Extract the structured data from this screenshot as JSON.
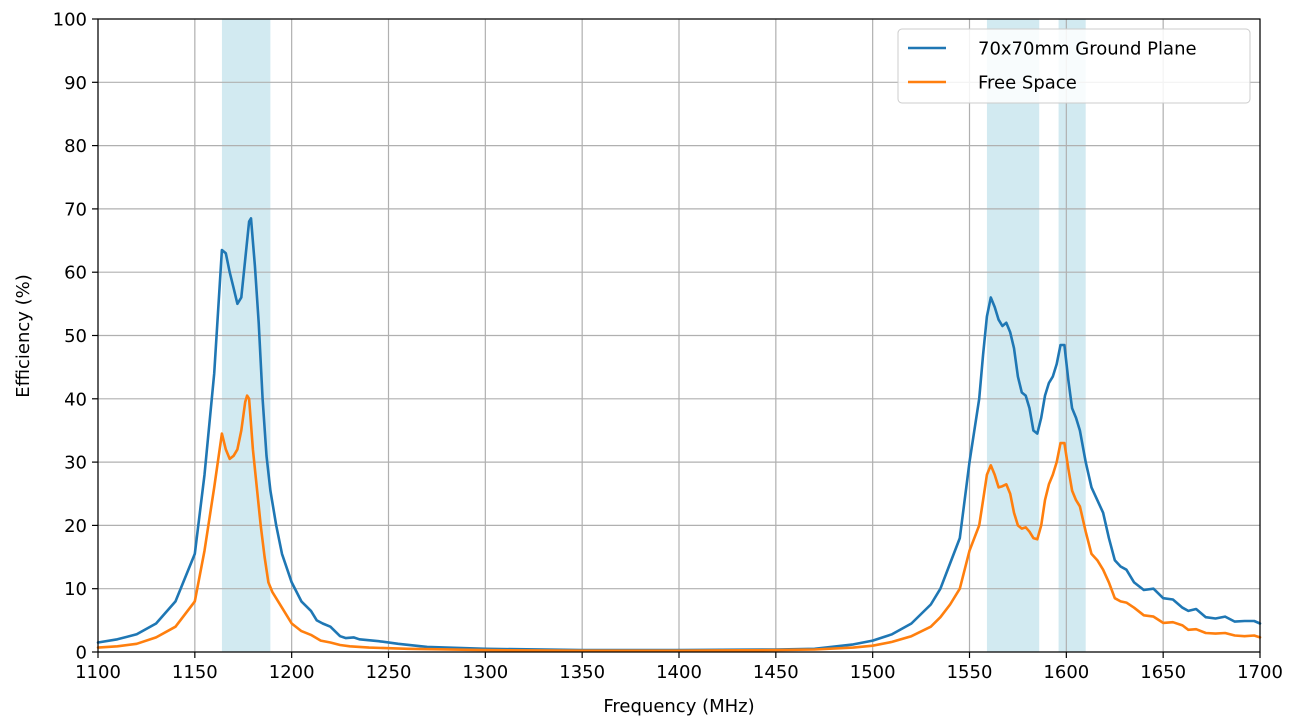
{
  "chart_data": {
    "type": "line",
    "title": "",
    "xlabel": "Frequency (MHz)",
    "ylabel": "Efficiency (%)",
    "xlim": [
      1100,
      1700
    ],
    "ylim": [
      0,
      100
    ],
    "xticks": [
      1100,
      1150,
      1200,
      1250,
      1300,
      1350,
      1400,
      1450,
      1500,
      1550,
      1600,
      1650,
      1700
    ],
    "yticks": [
      0,
      10,
      20,
      30,
      40,
      50,
      60,
      70,
      80,
      90,
      100
    ],
    "grid": true,
    "legend_position": "top-right",
    "bands": [
      {
        "x0": 1164,
        "x1": 1189,
        "color": "#add8e6"
      },
      {
        "x0": 1559,
        "x1": 1586,
        "color": "#add8e6"
      },
      {
        "x0": 1596,
        "x1": 1610,
        "color": "#add8e6"
      }
    ],
    "series": [
      {
        "name": "70x70mm Ground Plane",
        "color": "#1f77b4",
        "points": [
          [
            1100,
            1.5
          ],
          [
            1110,
            2
          ],
          [
            1120,
            2.8
          ],
          [
            1130,
            4.5
          ],
          [
            1140,
            8
          ],
          [
            1150,
            15.5
          ],
          [
            1155,
            28
          ],
          [
            1160,
            44
          ],
          [
            1164,
            63.5
          ],
          [
            1166,
            63
          ],
          [
            1168,
            60
          ],
          [
            1170,
            57.5
          ],
          [
            1172,
            55
          ],
          [
            1174,
            56
          ],
          [
            1176,
            62
          ],
          [
            1178,
            68
          ],
          [
            1179,
            68.5
          ],
          [
            1181,
            61
          ],
          [
            1183,
            52
          ],
          [
            1185,
            40
          ],
          [
            1187,
            31
          ],
          [
            1189,
            25.5
          ],
          [
            1192,
            20
          ],
          [
            1195,
            15.5
          ],
          [
            1200,
            11
          ],
          [
            1205,
            8
          ],
          [
            1210,
            6.5
          ],
          [
            1213,
            5
          ],
          [
            1216,
            4.5
          ],
          [
            1220,
            4
          ],
          [
            1225,
            2.5
          ],
          [
            1228,
            2.2
          ],
          [
            1232,
            2.3
          ],
          [
            1235,
            2
          ],
          [
            1245,
            1.7
          ],
          [
            1255,
            1.3
          ],
          [
            1270,
            0.8
          ],
          [
            1300,
            0.5
          ],
          [
            1350,
            0.3
          ],
          [
            1400,
            0.3
          ],
          [
            1450,
            0.4
          ],
          [
            1470,
            0.5
          ],
          [
            1490,
            1.2
          ],
          [
            1500,
            1.8
          ],
          [
            1510,
            2.8
          ],
          [
            1520,
            4.5
          ],
          [
            1530,
            7.5
          ],
          [
            1535,
            10
          ],
          [
            1540,
            14
          ],
          [
            1545,
            18
          ],
          [
            1550,
            30
          ],
          [
            1555,
            40
          ],
          [
            1557,
            47
          ],
          [
            1559,
            53
          ],
          [
            1561,
            56
          ],
          [
            1563,
            54.5
          ],
          [
            1565,
            52.5
          ],
          [
            1567,
            51.5
          ],
          [
            1569,
            52
          ],
          [
            1571,
            50.5
          ],
          [
            1573,
            48
          ],
          [
            1575,
            43.5
          ],
          [
            1577,
            41
          ],
          [
            1579,
            40.5
          ],
          [
            1581,
            38.5
          ],
          [
            1583,
            35
          ],
          [
            1585,
            34.5
          ],
          [
            1587,
            37
          ],
          [
            1589,
            40.5
          ],
          [
            1591,
            42.5
          ],
          [
            1593,
            43.5
          ],
          [
            1595,
            45.5
          ],
          [
            1597,
            48.5
          ],
          [
            1599,
            48.5
          ],
          [
            1601,
            43
          ],
          [
            1603,
            38.5
          ],
          [
            1605,
            37
          ],
          [
            1607,
            35
          ],
          [
            1610,
            30
          ],
          [
            1613,
            26
          ],
          [
            1616,
            24
          ],
          [
            1619,
            22
          ],
          [
            1622,
            18
          ],
          [
            1625,
            14.5
          ],
          [
            1628,
            13.5
          ],
          [
            1631,
            13
          ],
          [
            1635,
            11
          ],
          [
            1640,
            9.8
          ],
          [
            1645,
            10
          ],
          [
            1650,
            8.5
          ],
          [
            1655,
            8.3
          ],
          [
            1660,
            7
          ],
          [
            1663,
            6.5
          ],
          [
            1667,
            6.8
          ],
          [
            1672,
            5.5
          ],
          [
            1677,
            5.3
          ],
          [
            1682,
            5.6
          ],
          [
            1687,
            4.8
          ],
          [
            1692,
            4.9
          ],
          [
            1697,
            4.9
          ],
          [
            1700,
            4.5
          ]
        ]
      },
      {
        "name": "Free Space",
        "color": "#ff7f0e",
        "points": [
          [
            1100,
            0.7
          ],
          [
            1110,
            0.9
          ],
          [
            1120,
            1.3
          ],
          [
            1130,
            2.3
          ],
          [
            1140,
            4
          ],
          [
            1150,
            8
          ],
          [
            1155,
            16
          ],
          [
            1160,
            26
          ],
          [
            1164,
            34.5
          ],
          [
            1166,
            32
          ],
          [
            1168,
            30.5
          ],
          [
            1170,
            31
          ],
          [
            1172,
            32
          ],
          [
            1174,
            35
          ],
          [
            1176,
            39.5
          ],
          [
            1177,
            40.5
          ],
          [
            1178,
            40
          ],
          [
            1180,
            32
          ],
          [
            1182,
            26
          ],
          [
            1184,
            20
          ],
          [
            1186,
            15
          ],
          [
            1188,
            11
          ],
          [
            1190,
            9.5
          ],
          [
            1195,
            7
          ],
          [
            1200,
            4.5
          ],
          [
            1205,
            3.3
          ],
          [
            1210,
            2.7
          ],
          [
            1215,
            1.8
          ],
          [
            1220,
            1.5
          ],
          [
            1225,
            1.1
          ],
          [
            1230,
            0.9
          ],
          [
            1240,
            0.7
          ],
          [
            1260,
            0.5
          ],
          [
            1300,
            0.3
          ],
          [
            1350,
            0.2
          ],
          [
            1400,
            0.2
          ],
          [
            1450,
            0.3
          ],
          [
            1470,
            0.4
          ],
          [
            1490,
            0.7
          ],
          [
            1500,
            1
          ],
          [
            1510,
            1.6
          ],
          [
            1520,
            2.5
          ],
          [
            1530,
            4
          ],
          [
            1535,
            5.5
          ],
          [
            1540,
            7.5
          ],
          [
            1545,
            10
          ],
          [
            1550,
            16
          ],
          [
            1555,
            20
          ],
          [
            1557,
            24
          ],
          [
            1559,
            28
          ],
          [
            1561,
            29.5
          ],
          [
            1563,
            28
          ],
          [
            1565,
            26
          ],
          [
            1567,
            26.2
          ],
          [
            1569,
            26.5
          ],
          [
            1571,
            25
          ],
          [
            1573,
            22
          ],
          [
            1575,
            20
          ],
          [
            1577,
            19.5
          ],
          [
            1579,
            19.7
          ],
          [
            1581,
            19
          ],
          [
            1583,
            18
          ],
          [
            1585,
            17.8
          ],
          [
            1587,
            20
          ],
          [
            1589,
            24
          ],
          [
            1591,
            26.5
          ],
          [
            1593,
            28
          ],
          [
            1595,
            30
          ],
          [
            1597,
            33
          ],
          [
            1599,
            33
          ],
          [
            1601,
            29
          ],
          [
            1603,
            25.5
          ],
          [
            1605,
            24
          ],
          [
            1607,
            23
          ],
          [
            1610,
            19
          ],
          [
            1613,
            15.5
          ],
          [
            1616,
            14.5
          ],
          [
            1619,
            13
          ],
          [
            1622,
            11
          ],
          [
            1625,
            8.5
          ],
          [
            1628,
            8
          ],
          [
            1631,
            7.8
          ],
          [
            1635,
            7
          ],
          [
            1640,
            5.8
          ],
          [
            1645,
            5.6
          ],
          [
            1650,
            4.6
          ],
          [
            1655,
            4.7
          ],
          [
            1660,
            4.2
          ],
          [
            1663,
            3.5
          ],
          [
            1667,
            3.6
          ],
          [
            1672,
            3
          ],
          [
            1677,
            2.9
          ],
          [
            1682,
            3
          ],
          [
            1687,
            2.6
          ],
          [
            1692,
            2.5
          ],
          [
            1697,
            2.6
          ],
          [
            1700,
            2.3
          ]
        ]
      }
    ]
  }
}
